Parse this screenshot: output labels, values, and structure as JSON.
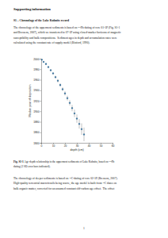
{
  "header": {
    "title": "Supporting information",
    "section": "S1 – Chronology of the Lake Kuhnitz record"
  },
  "paragraphs": [
    {
      "lines": [
        [
          "The chronology of the uppermost sediments is based on ",
          {
            "sup": "210"
          },
          "Pb dating of core 01-1P (Fig. S1-1"
        ],
        [
          "and Bressens, 2007), which we transferred to 07-1P using closed-marker horizons of magnetic"
        ],
        [
          "susceptibility and bulk compositions.  Sediment ages in depth and accumulation rates were"
        ],
        [
          "calculated using the constant rate of supply model (Binford, 1990)."
        ]
      ]
    },
    {
      "lines": [
        [
          "The chronology of deeper sediments is based on ",
          {
            "sup": "14"
          },
          "C-dating of core 02-1P (Bressens, 2007)."
        ],
        [
          "High-quality terrestrial macrofossils being scarce, the age model is built from ",
          {
            "sup": "14"
          },
          "C dates on"
        ],
        [
          "bulk organic matter, corrected for an assumed constant old-carbon age offset.  The offset"
        ]
      ]
    }
  ],
  "chart_data": {
    "type": "scatter",
    "x_label": "depth (cm)",
    "y_label": "Median year of deposition",
    "x": [
      0.5,
      2,
      4,
      6,
      8,
      10,
      12,
      14,
      16,
      18,
      20,
      22,
      24,
      26,
      28,
      30,
      32,
      34,
      36
    ],
    "values": [
      1998,
      1994,
      1990,
      1984,
      1978,
      1972,
      1965,
      1958,
      1950,
      1942,
      1934,
      1925,
      1916,
      1906,
      1896,
      1886,
      1876,
      1866,
      1856
    ],
    "error": [
      1,
      1,
      1.5,
      1.5,
      2,
      2,
      2.5,
      3,
      3,
      3.5,
      4,
      4.5,
      5,
      6,
      7,
      8,
      9,
      11,
      13
    ],
    "color": "#3a78a8",
    "marker": "circle",
    "xlim": [
      0,
      60
    ],
    "xticks": [
      0,
      10,
      20,
      30,
      40,
      50,
      60
    ],
    "ylim": [
      1840,
      2000
    ],
    "yticks": [
      1840,
      1860,
      1880,
      1900,
      1920,
      1940,
      1960,
      1980,
      2000
    ]
  },
  "caption": {
    "lines": [
      [
        {
          "bold": "Fig. S1-1"
        },
        " Age-depth relationship in the uppermost sediments of Lake Kuhnitz, based on ",
        {
          "sup": "210"
        },
        "Pb"
      ],
      [
        "dating (2 SD error bars indicated)."
      ]
    ]
  },
  "page_number": 1
}
